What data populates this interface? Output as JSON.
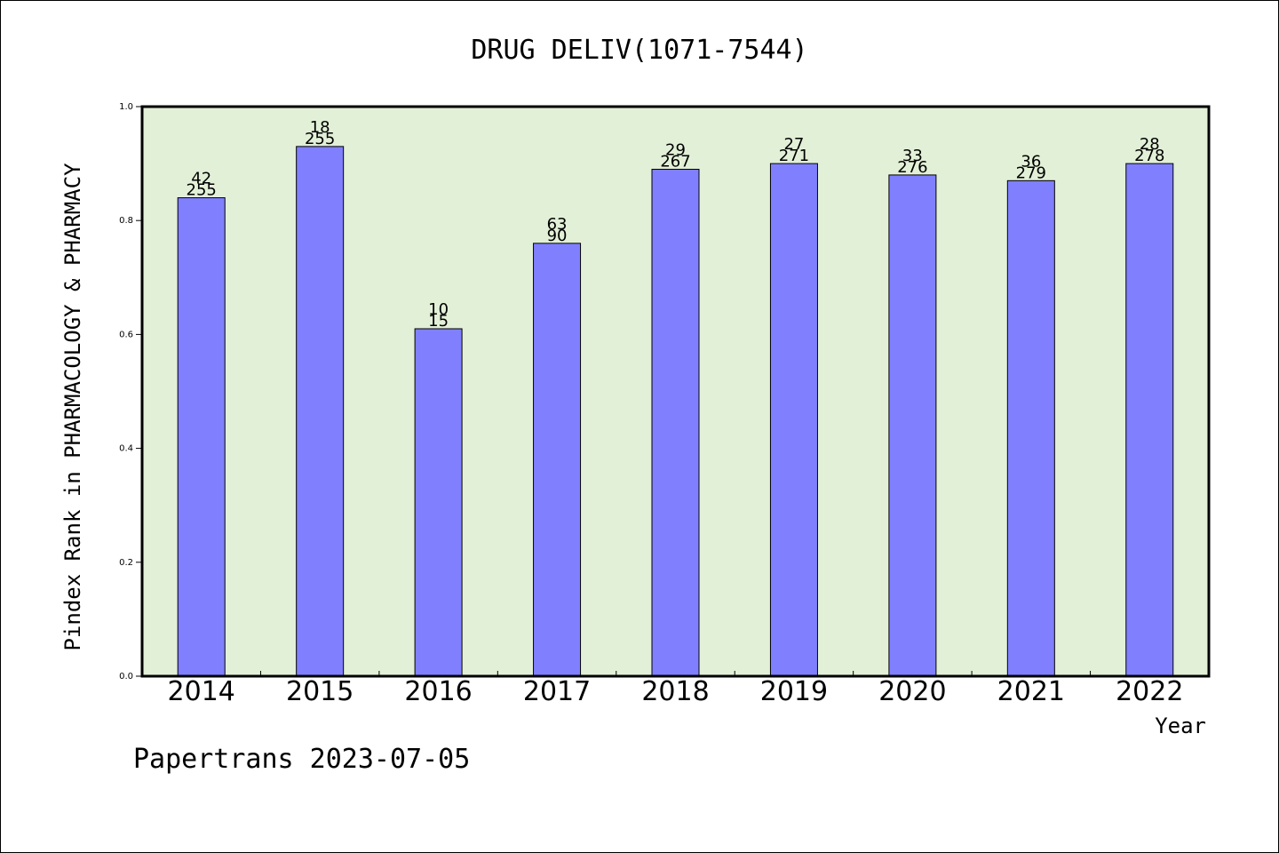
{
  "chart_data": {
    "type": "bar",
    "title": "DRUG DELIV(1071-7544)",
    "xlabel": "Year",
    "ylabel": "Pindex Rank in PHARMACOLOGY & PHARMACY",
    "ylim": [
      0,
      1.0
    ],
    "yticks": [
      "0.0",
      "0.2",
      "0.4",
      "0.6",
      "0.8",
      "1.0"
    ],
    "grid": false,
    "categories": [
      "2014",
      "2015",
      "2016",
      "2017",
      "2018",
      "2019",
      "2020",
      "2021",
      "2022"
    ],
    "values": [
      0.84,
      0.93,
      0.61,
      0.76,
      0.89,
      0.9,
      0.88,
      0.87,
      0.9
    ],
    "label_top": [
      "42",
      "18",
      "10",
      "63",
      "29",
      "27",
      "33",
      "36",
      "28"
    ],
    "label_bottom": [
      "255",
      "255",
      "15",
      "90",
      "267",
      "271",
      "276",
      "279",
      "278"
    ],
    "colors": {
      "bar": "#8080ff",
      "plot_background": "#e2f0d7",
      "axis": "#000000"
    }
  },
  "footer": {
    "text": "Papertrans 2023-07-05"
  }
}
